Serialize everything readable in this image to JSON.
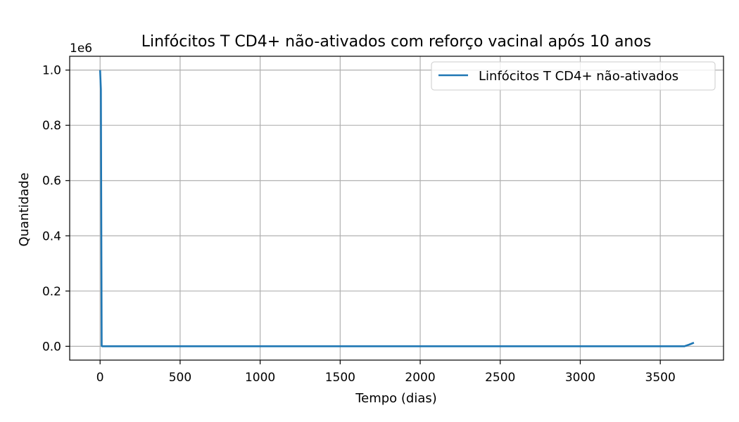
{
  "chart_data": {
    "type": "line",
    "title": "Linfócitos T CD4+ não-ativados com reforço vacinal após 10 anos",
    "xlabel": "Tempo (dias)",
    "ylabel": "Quantidade",
    "y_offset_label": "1e6",
    "xlim": [
      -190,
      3895
    ],
    "ylim": [
      -0.05,
      1.05
    ],
    "x_ticks": [
      0,
      500,
      1000,
      1500,
      2000,
      2500,
      3000,
      3500
    ],
    "x_tick_labels": [
      "0",
      "500",
      "1000",
      "1500",
      "2000",
      "2500",
      "3000",
      "3500"
    ],
    "y_ticks": [
      0.0,
      0.2,
      0.4,
      0.6,
      0.8,
      1.0
    ],
    "y_tick_labels": [
      "0.0",
      "0.2",
      "0.4",
      "0.6",
      "0.8",
      "1.0"
    ],
    "grid": true,
    "legend": "top-right",
    "series": [
      {
        "name": "Linfócitos T CD4+ não-ativados",
        "color": "#1f77b4",
        "x": [
          0,
          5,
          10,
          15,
          20,
          100,
          500,
          1000,
          1500,
          2000,
          2500,
          3000,
          3500,
          3650,
          3680,
          3710
        ],
        "y": [
          1.0,
          0.93,
          0.001,
          0.0,
          0.0,
          0.0,
          0.0,
          0.0,
          0.0,
          0.0,
          0.0,
          0.0,
          0.0,
          0.0,
          0.006,
          0.013
        ]
      }
    ]
  }
}
